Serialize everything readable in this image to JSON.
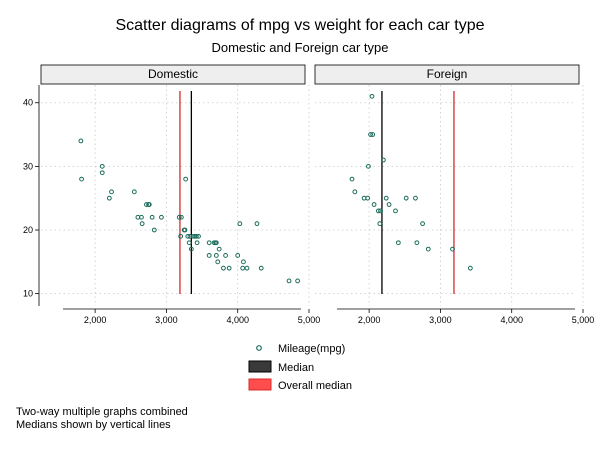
{
  "chart_data": {
    "type": "scatter",
    "title": "Scatter diagrams of mpg vs weight for each car type",
    "subtitle": "Domestic and Foreign car type",
    "xlim": [
      1760,
      5000
    ],
    "ylim": [
      9,
      42
    ],
    "x_ticks": [
      2000,
      3000,
      4000,
      5000
    ],
    "x_tick_labels": [
      "2,000",
      "3,000",
      "4,000",
      "5,000"
    ],
    "y_ticks": [
      10,
      20,
      30,
      40
    ],
    "y_tick_labels": [
      "10",
      "20",
      "30",
      "40"
    ],
    "grid": true,
    "legend_position": "bottom",
    "legend": [
      {
        "label": "Mileage(mpg)",
        "symbol": "hollow-circle",
        "color": "#1a6b5a"
      },
      {
        "label": "Median",
        "symbol": "box",
        "color": "#3a3a3a"
      },
      {
        "label": "Overall median",
        "symbol": "box",
        "color": "#ff4d4d"
      }
    ],
    "colors": {
      "point": "#1a6b5a",
      "median": "#000000",
      "overall_median": "#d92b2b",
      "grid": "#c8c8c8"
    },
    "panels": [
      {
        "name": "Domestic",
        "median": 3350,
        "overall_median": 3190,
        "points": [
          [
            1800,
            34
          ],
          [
            1810,
            28
          ],
          [
            2100,
            30
          ],
          [
            2100,
            29
          ],
          [
            2200,
            25
          ],
          [
            2230,
            26
          ],
          [
            2550,
            26
          ],
          [
            2600,
            22
          ],
          [
            2650,
            22
          ],
          [
            2660,
            21
          ],
          [
            2720,
            24
          ],
          [
            2750,
            24
          ],
          [
            2760,
            24
          ],
          [
            2800,
            22
          ],
          [
            2830,
            20
          ],
          [
            2930,
            22
          ],
          [
            3180,
            22
          ],
          [
            3210,
            22
          ],
          [
            3200,
            19
          ],
          [
            3250,
            20
          ],
          [
            3260,
            20
          ],
          [
            3270,
            28
          ],
          [
            3300,
            19
          ],
          [
            3320,
            18
          ],
          [
            3330,
            19
          ],
          [
            3350,
            17
          ],
          [
            3380,
            19
          ],
          [
            3400,
            19
          ],
          [
            3420,
            19
          ],
          [
            3430,
            18
          ],
          [
            3450,
            19
          ],
          [
            3600,
            18
          ],
          [
            3600,
            16
          ],
          [
            3670,
            18
          ],
          [
            3690,
            18
          ],
          [
            3700,
            18
          ],
          [
            3700,
            16
          ],
          [
            3720,
            15
          ],
          [
            3740,
            17
          ],
          [
            3800,
            14
          ],
          [
            3830,
            16
          ],
          [
            3880,
            14
          ],
          [
            4000,
            16
          ],
          [
            4030,
            21
          ],
          [
            4070,
            14
          ],
          [
            4080,
            15
          ],
          [
            4130,
            14
          ],
          [
            4270,
            21
          ],
          [
            4330,
            14
          ],
          [
            4720,
            12
          ],
          [
            4840,
            12
          ]
        ]
      },
      {
        "name": "Foreign",
        "median": 2180,
        "overall_median": 3190,
        "points": [
          [
            1760,
            28
          ],
          [
            1800,
            26
          ],
          [
            1930,
            25
          ],
          [
            1980,
            25
          ],
          [
            1990,
            30
          ],
          [
            2020,
            35
          ],
          [
            2050,
            35
          ],
          [
            2040,
            41
          ],
          [
            2070,
            24
          ],
          [
            2130,
            23
          ],
          [
            2150,
            21
          ],
          [
            2160,
            23
          ],
          [
            2200,
            31
          ],
          [
            2240,
            25
          ],
          [
            2280,
            24
          ],
          [
            2370,
            23
          ],
          [
            2410,
            18
          ],
          [
            2520,
            25
          ],
          [
            2650,
            25
          ],
          [
            2670,
            18
          ],
          [
            2750,
            21
          ],
          [
            2830,
            17
          ],
          [
            3170,
            17
          ],
          [
            3420,
            14
          ]
        ]
      }
    ]
  },
  "notes": [
    "Two-way multiple graphs combined",
    "Medians shown by vertical lines"
  ]
}
